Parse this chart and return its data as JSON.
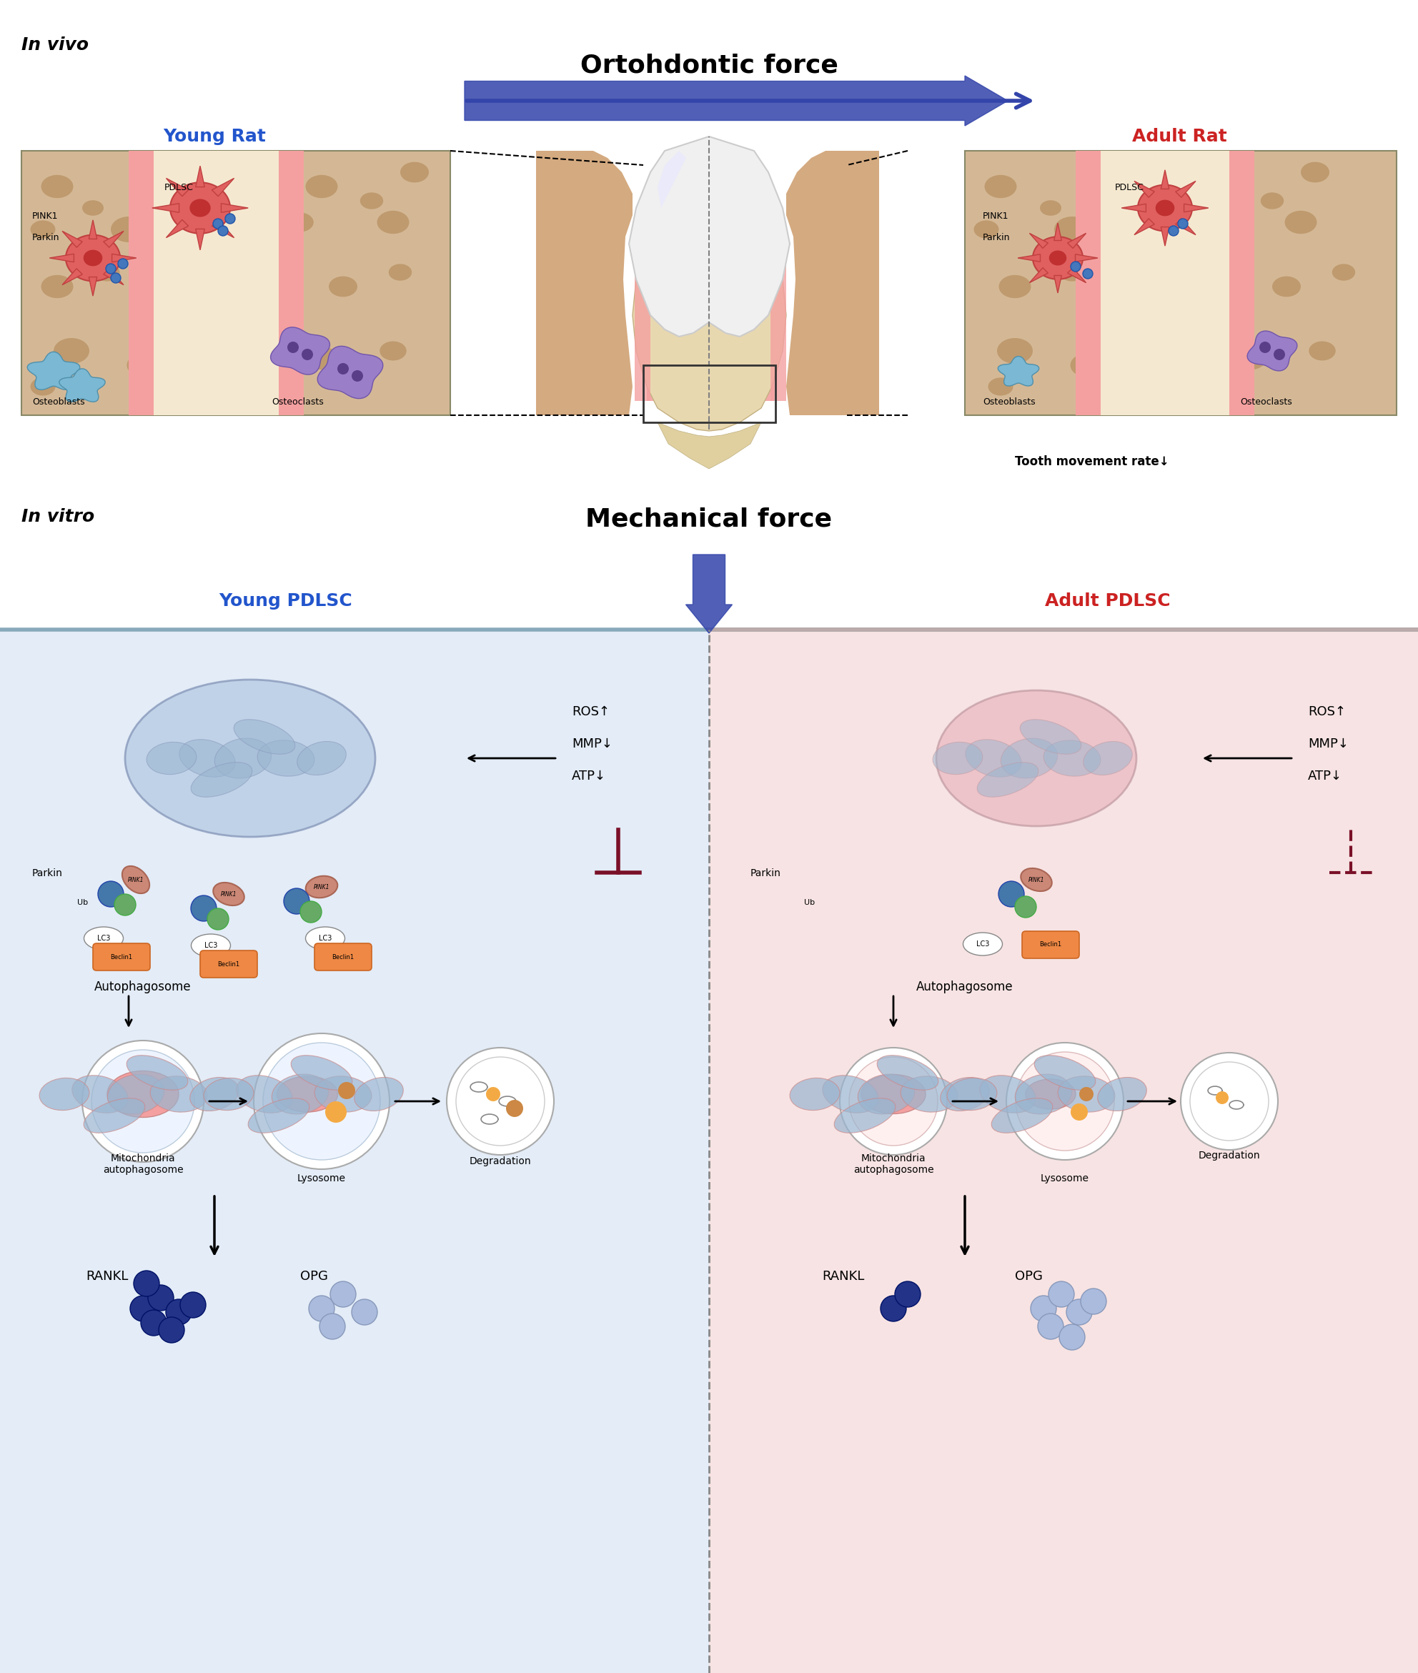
{
  "title_invivo": "In vivo",
  "title_invitro": "In vitro",
  "title_ortho": "Ortohdontic force",
  "title_mechanical": "Mechanical force",
  "young_rat_label": "Young Rat",
  "adult_rat_label": "Adult Rat",
  "young_pdlsc_label": "Young PDLSC",
  "adult_pdlsc_label": "Adult PDLSC",
  "tooth_movement_text": "Tooth movement rate↓",
  "pdlsc_text": "PDLSC",
  "pink1_text": "PINK1",
  "parkin_text": "Parkin",
  "osteoblasts_text": "Osteoblasts",
  "osteoclasts_text": "Osteoclasts",
  "ros_text": "ROS↑",
  "mmp_text": "MMP↓",
  "atp_text": "ATP↓",
  "autophagosome_text": "Autophagosome",
  "lysosome_text": "Lysosome",
  "degradation_text": "Degradation",
  "mitochondria_text": "Mitochondria\nautophagosome",
  "rankl_text": "RANKL",
  "opg_text": "OPG",
  "ub_text": "Ub",
  "lc3_text": "LC3",
  "beclin1_text": "Beclin1",
  "young_color": "#2255CC",
  "adult_color": "#CC2222",
  "blue_bg": "#DCE8F5",
  "pink_bg": "#F5DCDC",
  "bone_color": "#D4AA80",
  "bone_dark": "#C49060",
  "pdl_color": "#F4A0A0",
  "cell_color": "#E06060",
  "osteoblast_color": "#7AB8D4",
  "osteoclast_color": "#9B7EC8",
  "mito_blue": "#A8C0D8",
  "mito_pink": "#E8A8B8",
  "pink1_color": "#CC7766",
  "parkin_color": "#4477AA",
  "ub_color": "#66AA66",
  "beclin_color": "#EE8844",
  "lc3_white": "#FFFFFF",
  "rankl_dark": "#223388",
  "opg_light": "#AABBCC",
  "inhibit_color": "#7A1028",
  "arrow_color": "#3344AA",
  "divider_color": "#888888",
  "border_blue": "#88AABB",
  "border_pink": "#BBAAAA"
}
